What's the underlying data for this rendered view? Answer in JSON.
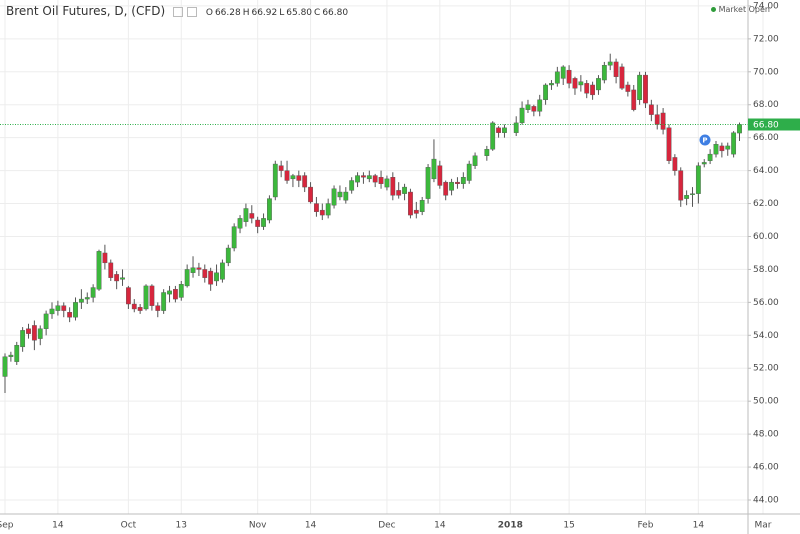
{
  "chart_data": {
    "type": "candlestick",
    "title": "Brent Oil Futures, D, (CFD)",
    "ohlc": [
      {
        "label": "O",
        "value": "66.28"
      },
      {
        "label": "H",
        "value": "66.92"
      },
      {
        "label": "L",
        "value": "65.80"
      },
      {
        "label": "C",
        "value": "66.80"
      }
    ],
    "status": "Market Open",
    "marker_label": "P",
    "up_color": "#3cb83c",
    "down_color": "#d7263d",
    "wick_color": "#555555",
    "price_line_color": "#2eae4a",
    "last_price": {
      "value": 66.8,
      "label": "66.80"
    },
    "grid": true,
    "categories": [
      "Sep",
      null,
      null,
      null,
      null,
      null,
      null,
      null,
      null,
      "14",
      null,
      null,
      null,
      null,
      null,
      null,
      null,
      null,
      null,
      null,
      null,
      "Oct",
      null,
      null,
      null,
      null,
      null,
      null,
      null,
      null,
      "13",
      null,
      null,
      null,
      null,
      null,
      null,
      null,
      null,
      null,
      null,
      null,
      null,
      "Nov",
      null,
      null,
      null,
      null,
      null,
      null,
      null,
      null,
      "14",
      null,
      null,
      null,
      null,
      null,
      null,
      null,
      null,
      null,
      null,
      null,
      null,
      "Dec",
      null,
      null,
      null,
      null,
      null,
      null,
      null,
      null,
      "14",
      null,
      null,
      null,
      null,
      null,
      null,
      null,
      null,
      null,
      null,
      null,
      "2018",
      null,
      null,
      null,
      null,
      null,
      null,
      null,
      null,
      null,
      "15",
      null,
      null,
      null,
      null,
      null,
      null,
      null,
      null,
      null,
      null,
      null,
      null,
      "Feb",
      null,
      null,
      null,
      null,
      null,
      null,
      null,
      null,
      "14",
      null,
      null,
      null,
      null,
      null,
      null,
      null,
      null,
      null,
      null,
      "Mar"
    ],
    "open": [
      51.5,
      52.7,
      52.4,
      53.3,
      54.4,
      54.6,
      53.8,
      54.4,
      55.3,
      55.5,
      55.8,
      55.4,
      55.1,
      56.0,
      56.2,
      56.3,
      56.8,
      59.0,
      58.4,
      57.7,
      57.4,
      56.9,
      55.9,
      55.7,
      55.6,
      57.0,
      55.8,
      55.5,
      56.5,
      56.8,
      56.3,
      57.0,
      57.8,
      58.1,
      58.0,
      57.9,
      57.3,
      57.4,
      58.4,
      59.3,
      60.5,
      60.9,
      61.4,
      61.0,
      60.6,
      61.0,
      62.4,
      64.3,
      64.0,
      63.5,
      63.7,
      63.7,
      63.0,
      62.0,
      61.6,
      61.3,
      61.9,
      62.4,
      62.2,
      62.8,
      63.3,
      63.7,
      63.5,
      63.7,
      63.6,
      63.0,
      63.6,
      62.8,
      62.6,
      62.7,
      61.6,
      61.5,
      62.3,
      63.5,
      64.3,
      63.3,
      62.8,
      63.3,
      63.2,
      63.4,
      64.3,
      null,
      64.9,
      65.3,
      66.6,
      66.3,
      null,
      66.3,
      66.9,
      67.7,
      67.9,
      67.6,
      68.3,
      69.2,
      69.3,
      69.6,
      70.1,
      69.6,
      69.2,
      69.3,
      69.2,
      68.9,
      69.5,
      70.4,
      70.6,
      70.3,
      69.2,
      68.9,
      68.3,
      69.8,
      68.0,
      67.4,
      67.5,
      66.6,
      64.8,
      64.0,
      62.3,
      62.6,
      62.6,
      64.4,
      64.6,
      65.0,
      65.5,
      65.3,
      65.0,
      66.28,
      null,
      null,
      null,
      null
    ],
    "high": [
      52.9,
      53.0,
      53.6,
      54.5,
      54.7,
      54.9,
      54.6,
      55.5,
      56.0,
      56.1,
      56.0,
      55.7,
      56.3,
      56.8,
      56.6,
      57.1,
      59.2,
      59.5,
      58.6,
      57.9,
      58.0,
      57.0,
      56.2,
      55.9,
      57.1,
      57.1,
      56.0,
      56.8,
      57.0,
      57.0,
      57.3,
      58.3,
      58.8,
      58.4,
      58.3,
      58.1,
      58.3,
      58.6,
      59.5,
      60.8,
      61.3,
      62.0,
      61.9,
      61.2,
      61.4,
      62.5,
      64.6,
      64.6,
      64.6,
      63.8,
      64.0,
      63.9,
      63.3,
      62.4,
      62.0,
      62.3,
      63.1,
      63.1,
      63.0,
      63.6,
      63.9,
      63.9,
      64.0,
      63.8,
      64.0,
      63.7,
      63.9,
      63.3,
      63.2,
      62.9,
      62.1,
      62.4,
      64.4,
      65.9,
      64.6,
      63.4,
      63.5,
      63.6,
      63.9,
      64.6,
      65.1,
      null,
      65.5,
      67.0,
      66.7,
      66.8,
      null,
      67.3,
      68.2,
      68.3,
      68.0,
      68.6,
      69.3,
      69.5,
      70.3,
      70.4,
      70.4,
      69.7,
      69.8,
      69.5,
      69.4,
      69.8,
      70.6,
      71.1,
      70.8,
      70.5,
      69.4,
      69.2,
      70.0,
      70.0,
      68.3,
      68.0,
      67.8,
      66.8,
      65.0,
      64.2,
      62.8,
      63.0,
      64.5,
      64.7,
      65.3,
      65.8,
      65.7,
      65.7,
      66.4,
      66.92,
      null,
      null,
      null,
      null
    ],
    "low": [
      50.5,
      52.4,
      52.2,
      53.0,
      53.8,
      53.1,
      53.4,
      54.0,
      55.0,
      55.2,
      55.1,
      54.8,
      54.9,
      55.6,
      55.9,
      56.0,
      56.7,
      58.0,
      57.3,
      56.8,
      57.0,
      55.6,
      55.4,
      55.3,
      55.5,
      55.5,
      55.1,
      55.3,
      56.0,
      56.0,
      56.1,
      56.9,
      57.5,
      57.6,
      57.2,
      56.7,
      57.0,
      57.2,
      58.2,
      59.1,
      60.2,
      60.6,
      60.8,
      60.2,
      60.4,
      60.8,
      62.2,
      63.6,
      63.2,
      63.0,
      63.0,
      62.7,
      62.0,
      61.2,
      61.0,
      61.1,
      61.7,
      62.2,
      62.0,
      62.6,
      63.0,
      63.2,
      63.3,
      63.0,
      62.9,
      62.8,
      62.2,
      62.3,
      62.2,
      61.1,
      61.1,
      61.3,
      62.0,
      63.3,
      62.9,
      62.2,
      62.5,
      62.9,
      62.9,
      63.2,
      64.1,
      null,
      64.6,
      65.2,
      66.0,
      66.0,
      null,
      66.1,
      66.8,
      67.5,
      67.3,
      67.3,
      68.0,
      68.9,
      69.1,
      69.2,
      69.0,
      68.6,
      68.8,
      68.4,
      68.3,
      68.6,
      69.3,
      70.1,
      69.3,
      68.9,
      68.5,
      67.6,
      68.0,
      67.8,
      67.0,
      66.5,
      66.2,
      64.4,
      63.7,
      61.8,
      61.9,
      61.8,
      62.0,
      64.2,
      64.4,
      64.8,
      64.8,
      64.9,
      64.8,
      65.8,
      null,
      null,
      null,
      null
    ],
    "close": [
      52.7,
      52.8,
      53.4,
      54.3,
      54.1,
      53.7,
      54.4,
      55.3,
      55.6,
      55.8,
      55.5,
      55.1,
      56.0,
      56.2,
      56.3,
      56.9,
      59.1,
      58.4,
      57.5,
      57.3,
      57.5,
      55.9,
      55.6,
      55.5,
      57.0,
      55.8,
      55.5,
      56.6,
      56.7,
      56.2,
      57.1,
      58.0,
      58.1,
      58.0,
      57.5,
      57.1,
      57.8,
      58.4,
      59.3,
      60.6,
      61.1,
      61.7,
      61.1,
      60.6,
      61.1,
      62.3,
      64.4,
      64.0,
      63.4,
      63.7,
      63.4,
      63.0,
      62.1,
      61.5,
      61.3,
      62.0,
      62.9,
      62.7,
      62.7,
      63.4,
      63.7,
      63.6,
      63.7,
      63.3,
      63.2,
      63.5,
      62.5,
      62.5,
      63.0,
      61.3,
      61.4,
      62.2,
      64.2,
      64.7,
      63.1,
      62.5,
      63.3,
      63.2,
      63.6,
      64.4,
      64.9,
      null,
      65.3,
      66.9,
      66.3,
      66.6,
      null,
      66.9,
      67.8,
      68.0,
      67.6,
      68.3,
      69.2,
      69.3,
      70.0,
      70.3,
      69.3,
      69.0,
      69.4,
      68.7,
      68.6,
      69.6,
      70.4,
      70.6,
      69.7,
      69.0,
      68.8,
      67.7,
      69.8,
      68.1,
      67.4,
      66.8,
      66.5,
      64.6,
      64.0,
      62.2,
      62.5,
      62.6,
      64.3,
      64.5,
      65.0,
      65.6,
      65.2,
      65.5,
      66.3,
      66.8,
      null,
      null,
      null,
      null
    ],
    "ylim": [
      43.15,
      74.36
    ],
    "yticks": [
      {
        "value": 44,
        "label": "44.00"
      },
      {
        "value": 46,
        "label": "46.00"
      },
      {
        "value": 48,
        "label": "48.00"
      },
      {
        "value": 50,
        "label": "50.00"
      },
      {
        "value": 52,
        "label": "52.00"
      },
      {
        "value": 54,
        "label": "54.00"
      },
      {
        "value": 56,
        "label": "56.00"
      },
      {
        "value": 58,
        "label": "58.00"
      },
      {
        "value": 60,
        "label": "60.00"
      },
      {
        "value": 62,
        "label": "62.00"
      },
      {
        "value": 64,
        "label": "64.00"
      },
      {
        "value": 66,
        "label": "66.00"
      },
      {
        "value": 68,
        "label": "68.00"
      },
      {
        "value": 70,
        "label": "70.00"
      },
      {
        "value": 72,
        "label": "72.00"
      },
      {
        "value": 74,
        "label": "74.00"
      }
    ]
  }
}
